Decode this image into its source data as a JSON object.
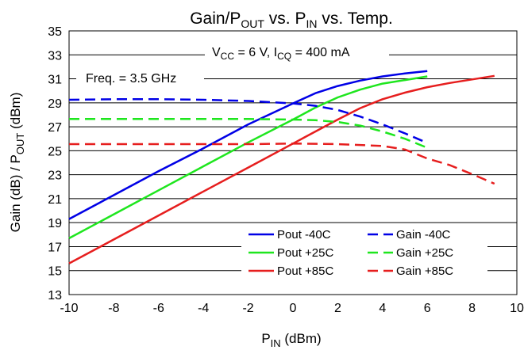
{
  "chart_data": {
    "type": "line",
    "title": {
      "main": "Gain/P",
      "sub1": "OUT",
      "mid": " vs. P",
      "sub2": "IN",
      "tail": " vs. Temp."
    },
    "xlabel": {
      "main": "P",
      "sub": "IN",
      "tail": " (dBm)"
    },
    "ylabel": {
      "main": "Gain (dB) / P",
      "sub": "OUT",
      "tail": " (dBm)"
    },
    "xlim": [
      -10,
      10
    ],
    "ylim": [
      13,
      35
    ],
    "xticks": [
      -10,
      -8,
      -6,
      -4,
      -2,
      0,
      2,
      4,
      6,
      8,
      10
    ],
    "yticks": [
      13,
      15,
      17,
      19,
      21,
      23,
      25,
      27,
      29,
      31,
      33,
      35
    ],
    "grid": "horizontal",
    "annotations": {
      "freq": "Freq. = 3.5 GHz",
      "bias": {
        "v": "V",
        "v_sub": "CC",
        "v_val": " = 6 V, I",
        "i_sub": "CQ",
        "i_val": " = 400 mA"
      }
    },
    "legend_position": "bottom-right",
    "series": [
      {
        "name": "Pout -40C",
        "color": "#0000e6",
        "dash": false,
        "x": [
          -10,
          -8,
          -6,
          -4,
          -2,
          0,
          1,
          2,
          3,
          4,
          5,
          6
        ],
        "y": [
          19.3,
          21.3,
          23.3,
          25.2,
          27.2,
          28.95,
          29.8,
          30.4,
          30.85,
          31.2,
          31.45,
          31.65
        ]
      },
      {
        "name": "Pout +25C",
        "color": "#1ee61e",
        "dash": false,
        "x": [
          -10,
          -8,
          -6,
          -4,
          -2,
          0,
          1,
          2,
          3,
          4,
          5,
          6
        ],
        "y": [
          17.7,
          19.7,
          21.7,
          23.7,
          25.7,
          27.6,
          28.6,
          29.45,
          30.1,
          30.6,
          30.9,
          31.2
        ]
      },
      {
        "name": "Pout +85C",
        "color": "#e61e1e",
        "dash": false,
        "x": [
          -10,
          -8,
          -6,
          -4,
          -2,
          0,
          1,
          2,
          3,
          4,
          5,
          6,
          7,
          8,
          9
        ],
        "y": [
          15.6,
          17.6,
          19.6,
          21.6,
          23.6,
          25.6,
          26.6,
          27.6,
          28.55,
          29.3,
          29.85,
          30.3,
          30.65,
          30.95,
          31.25
        ]
      },
      {
        "name": "Gain -40C",
        "color": "#0000e6",
        "dash": true,
        "x": [
          -10,
          -8,
          -6,
          -4,
          -2,
          0,
          1,
          2,
          3,
          4,
          5,
          6
        ],
        "y": [
          29.25,
          29.3,
          29.3,
          29.25,
          29.15,
          28.95,
          28.75,
          28.4,
          27.85,
          27.2,
          26.45,
          25.65
        ]
      },
      {
        "name": "Gain +25C",
        "color": "#1ee61e",
        "dash": true,
        "x": [
          -10,
          -8,
          -6,
          -4,
          -2,
          0,
          1,
          2,
          3,
          4,
          5,
          6
        ],
        "y": [
          27.65,
          27.65,
          27.65,
          27.65,
          27.65,
          27.6,
          27.55,
          27.4,
          27.1,
          26.6,
          26.0,
          25.25
        ]
      },
      {
        "name": "Gain +85C",
        "color": "#e61e1e",
        "dash": true,
        "x": [
          -10,
          -8,
          -6,
          -4,
          -2,
          0,
          2,
          4,
          5,
          6,
          7,
          8,
          9
        ],
        "y": [
          25.55,
          25.55,
          25.55,
          25.55,
          25.55,
          25.6,
          25.55,
          25.4,
          25.1,
          24.35,
          23.8,
          23.05,
          22.25
        ]
      }
    ]
  }
}
